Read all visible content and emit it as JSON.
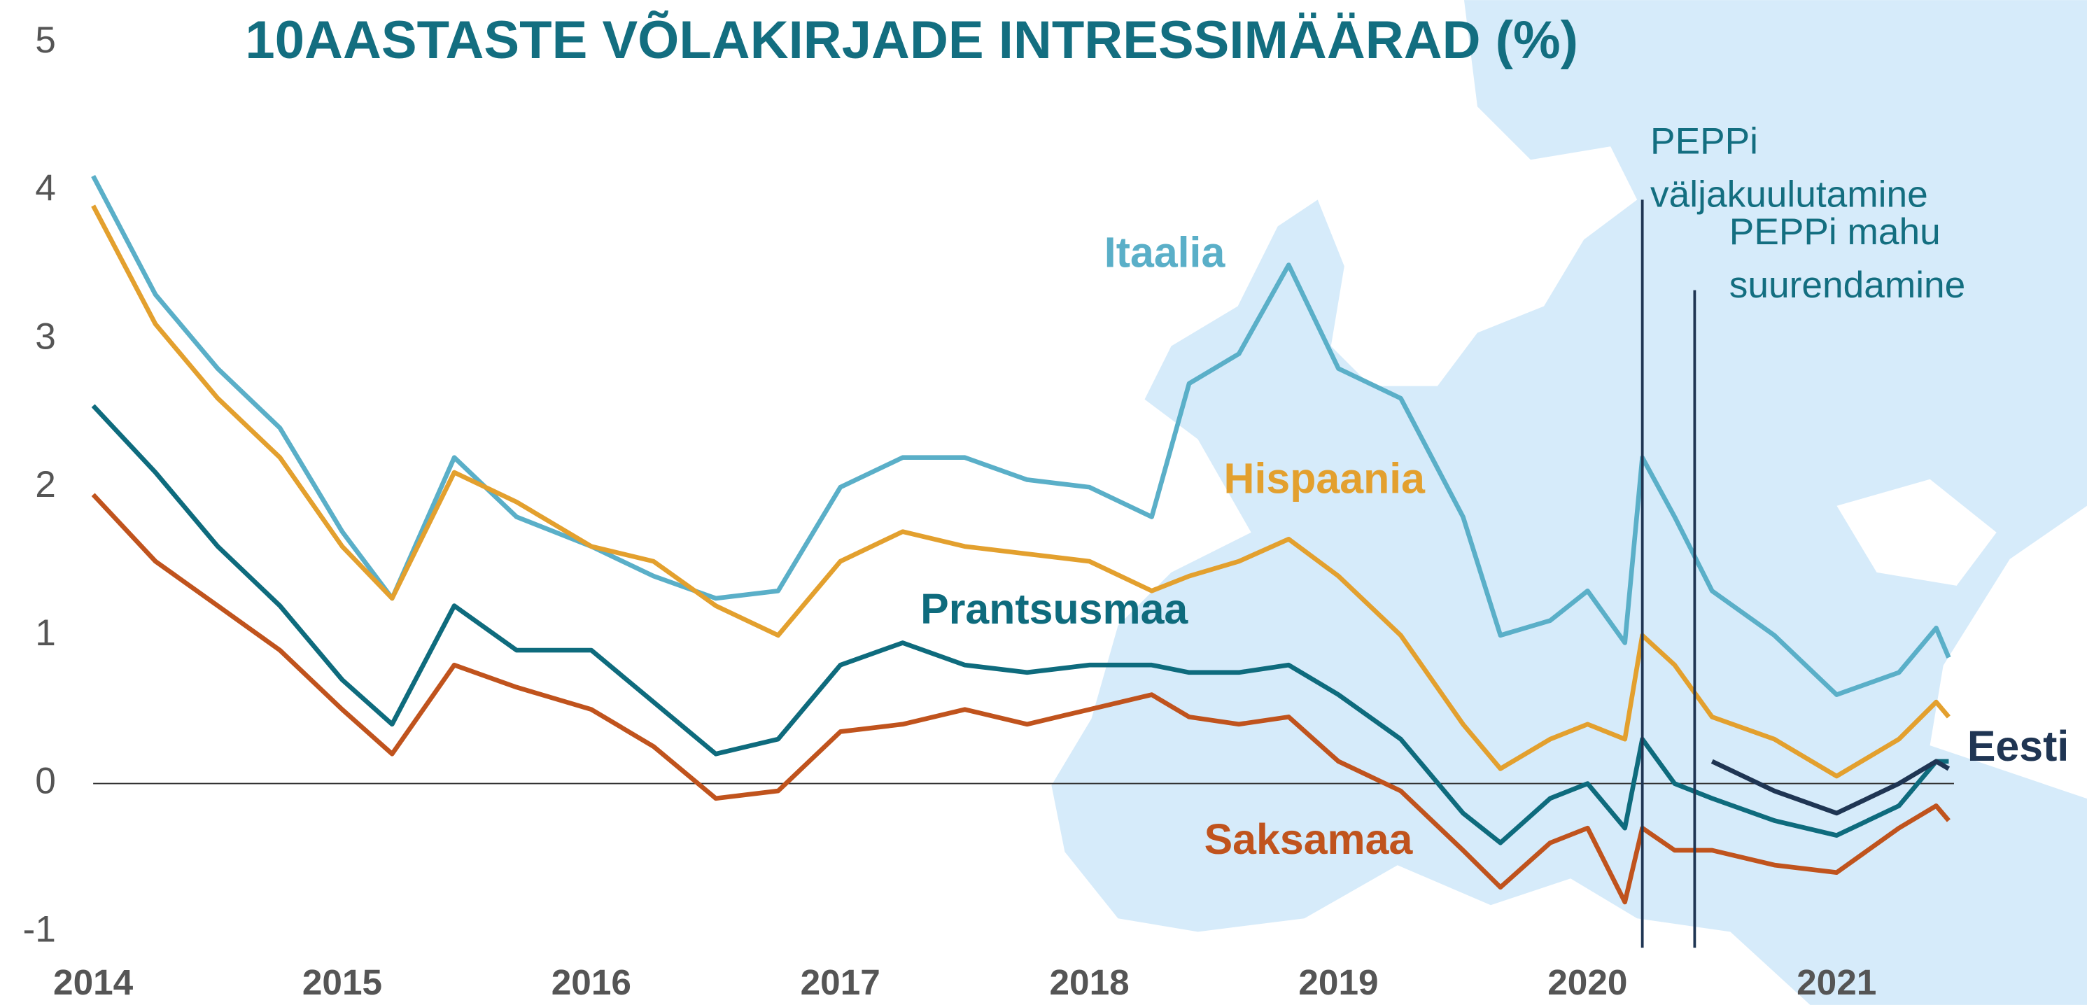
{
  "chart_data": {
    "type": "line",
    "title": "10AASTASTE VÕLAKIRJADE INTRESSIMÄÄRAD (%)",
    "x": [
      2014,
      2014.25,
      2014.5,
      2014.75,
      2015,
      2015.2,
      2015.45,
      2015.7,
      2016,
      2016.25,
      2016.5,
      2016.75,
      2017,
      2017.25,
      2017.5,
      2017.75,
      2018,
      2018.25,
      2018.4,
      2018.6,
      2018.8,
      2019,
      2019.25,
      2019.5,
      2019.65,
      2019.85,
      2020,
      2020.15,
      2020.22,
      2020.35,
      2020.5,
      2020.75,
      2021,
      2021.25,
      2021.4,
      2021.45
    ],
    "series": [
      {
        "name": "Itaalia",
        "color": "#5aafc8",
        "values": [
          4.1,
          3.3,
          2.8,
          2.4,
          1.7,
          1.25,
          2.2,
          1.8,
          1.6,
          1.4,
          1.25,
          1.3,
          2.0,
          2.2,
          2.2,
          2.05,
          2.0,
          1.8,
          2.7,
          2.9,
          3.5,
          2.8,
          2.6,
          1.8,
          1.0,
          1.1,
          1.3,
          0.95,
          2.2,
          1.8,
          1.3,
          1.0,
          0.6,
          0.75,
          1.05,
          0.85
        ]
      },
      {
        "name": "Hispaania",
        "color": "#e3a02e",
        "values": [
          3.9,
          3.1,
          2.6,
          2.2,
          1.6,
          1.25,
          2.1,
          1.9,
          1.6,
          1.5,
          1.2,
          1.0,
          1.5,
          1.7,
          1.6,
          1.55,
          1.5,
          1.3,
          1.4,
          1.5,
          1.65,
          1.4,
          1.0,
          0.4,
          0.1,
          0.3,
          0.4,
          0.3,
          1.0,
          0.8,
          0.45,
          0.3,
          0.05,
          0.3,
          0.55,
          0.45
        ]
      },
      {
        "name": "Prantsusmaa",
        "color": "#0e6b7d",
        "values": [
          2.55,
          2.1,
          1.6,
          1.2,
          0.7,
          0.4,
          1.2,
          0.9,
          0.9,
          0.55,
          0.2,
          0.3,
          0.8,
          0.95,
          0.8,
          0.75,
          0.8,
          0.8,
          0.75,
          0.75,
          0.8,
          0.6,
          0.3,
          -0.2,
          -0.4,
          -0.1,
          0.0,
          -0.3,
          0.3,
          0.0,
          -0.1,
          -0.25,
          -0.35,
          -0.15,
          0.15,
          0.15
        ]
      },
      {
        "name": "Saksamaa",
        "color": "#c0531d",
        "values": [
          1.95,
          1.5,
          1.2,
          0.9,
          0.5,
          0.2,
          0.8,
          0.65,
          0.5,
          0.25,
          -0.1,
          -0.05,
          0.35,
          0.4,
          0.5,
          0.4,
          0.5,
          0.6,
          0.45,
          0.4,
          0.45,
          0.15,
          -0.05,
          -0.45,
          -0.7,
          -0.4,
          -0.3,
          -0.8,
          -0.3,
          -0.45,
          -0.45,
          -0.55,
          -0.6,
          -0.3,
          -0.15,
          -0.25
        ]
      },
      {
        "name": "Eesti",
        "color": "#1f3553",
        "values": [
          null,
          null,
          null,
          null,
          null,
          null,
          null,
          null,
          null,
          null,
          null,
          null,
          null,
          null,
          null,
          null,
          null,
          null,
          null,
          null,
          null,
          null,
          null,
          null,
          null,
          null,
          null,
          null,
          null,
          null,
          0.15,
          -0.05,
          -0.2,
          0.0,
          0.15,
          0.1
        ]
      }
    ],
    "annotations": [
      {
        "x": 2020.22,
        "lines": [
          "PEPPi",
          "väljakuulutamine"
        ]
      },
      {
        "x": 2020.43,
        "lines": [
          "PEPPi mahu",
          "suurendamine"
        ]
      }
    ],
    "xlim": [
      2014,
      2022
    ],
    "xticks": [
      2014,
      2015,
      2016,
      2017,
      2018,
      2019,
      2020,
      2021
    ],
    "ylim": [
      -1,
      5
    ],
    "yticks": [
      -1,
      0,
      1,
      2,
      3,
      4,
      5
    ]
  }
}
